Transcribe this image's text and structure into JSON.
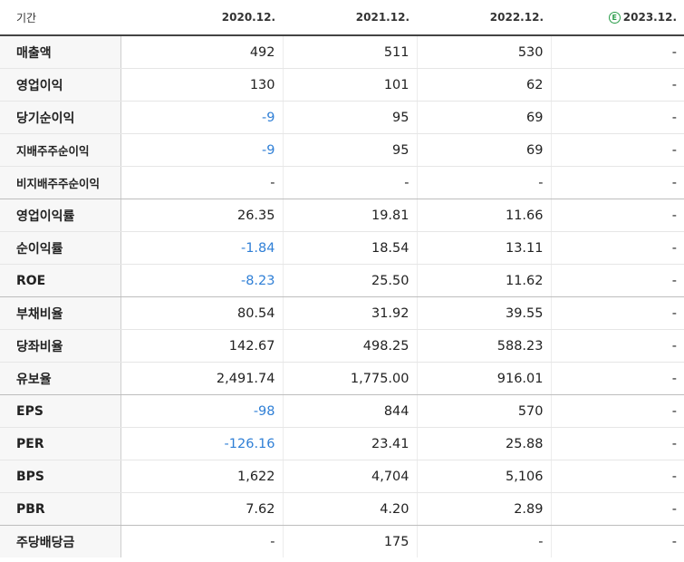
{
  "header": {
    "period_label": "기간",
    "periods": [
      "2020.12.",
      "2021.12.",
      "2022.12.",
      "2023.12."
    ],
    "estimate_badge": "E"
  },
  "rows": [
    {
      "label": "매출액",
      "values": [
        "492",
        "511",
        "530",
        "-"
      ]
    },
    {
      "label": "영업이익",
      "values": [
        "130",
        "101",
        "62",
        "-"
      ]
    },
    {
      "label": "당기순이익",
      "values": [
        "-9",
        "95",
        "69",
        "-"
      ]
    },
    {
      "label": "지배주주순이익",
      "values": [
        "-9",
        "95",
        "69",
        "-"
      ]
    },
    {
      "label": "비지배주주순이익",
      "values": [
        "-",
        "-",
        "-",
        "-"
      ]
    },
    {
      "label": "영업이익률",
      "values": [
        "26.35",
        "19.81",
        "11.66",
        "-"
      ]
    },
    {
      "label": "순이익률",
      "values": [
        "-1.84",
        "18.54",
        "13.11",
        "-"
      ]
    },
    {
      "label": "ROE",
      "values": [
        "-8.23",
        "25.50",
        "11.62",
        "-"
      ]
    },
    {
      "label": "부채비율",
      "values": [
        "80.54",
        "31.92",
        "39.55",
        "-"
      ]
    },
    {
      "label": "당좌비율",
      "values": [
        "142.67",
        "498.25",
        "588.23",
        "-"
      ]
    },
    {
      "label": "유보율",
      "values": [
        "2,491.74",
        "1,775.00",
        "916.01",
        "-"
      ]
    },
    {
      "label": "EPS",
      "values": [
        "-98",
        "844",
        "570",
        "-"
      ]
    },
    {
      "label": "PER",
      "values": [
        "-126.16",
        "23.41",
        "25.88",
        "-"
      ]
    },
    {
      "label": "BPS",
      "values": [
        "1,622",
        "4,704",
        "5,106",
        "-"
      ]
    },
    {
      "label": "PBR",
      "values": [
        "7.62",
        "4.20",
        "2.89",
        "-"
      ]
    },
    {
      "label": "주당배당금",
      "values": [
        "-",
        "175",
        "-",
        "-"
      ]
    }
  ],
  "colors": {
    "negative": "#2f7fd6",
    "estimate": "#2a9d4a",
    "label_bg": "#f7f7f7"
  }
}
